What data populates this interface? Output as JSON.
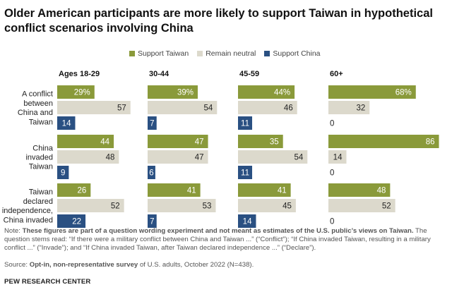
{
  "title": "Older American participants are more likely to support Taiwan in hypothetical conflict scenarios involving China",
  "note": {
    "prefix": "Note: ",
    "bold": "These figures are part of a question wording experiment and not meant as estimates of the U.S. public’s views on Taiwan.",
    "rest": " The question stems read: “If there were a military conflict between China and Taiwan ...” (“Conflict”); “If China invaded Taiwan, resulting in a military conflict ...” (“Invade”); and “If China invaded Taiwan, after Taiwan declared independence ...” (“Declare”)."
  },
  "source": {
    "prefix": "Source: ",
    "bold": "Opt-in, non-representative survey",
    "rest": " of U.S. adults, October 2022 (N=438)."
  },
  "brand": "PEW RESEARCH CENTER",
  "colors": {
    "support_taiwan": "#8a9a3a",
    "remain_neutral": "#dcd9cc",
    "support_china": "#2a5082",
    "label_light": "#ffffff",
    "label_dark": "#222222"
  },
  "chart_data": {
    "type": "bar",
    "orientation": "horizontal",
    "legend_position": "top",
    "grid": false,
    "xlim": [
      0,
      100
    ],
    "series_names": [
      "Support Taiwan",
      "Remain neutral",
      "Support China"
    ],
    "age_groups": [
      "Ages 18-29",
      "30-44",
      "45-59",
      "60+"
    ],
    "scenarios": [
      {
        "label_lines": [
          "A conflict",
          "between",
          "China and",
          "Taiwan"
        ]
      },
      {
        "label_lines": [
          "China",
          "invaded",
          "Taiwan"
        ]
      },
      {
        "label_lines": [
          "Taiwan",
          "declared",
          "independence,",
          "China invaded"
        ]
      }
    ],
    "values": {
      "Ages 18-29": [
        [
          29,
          57,
          14
        ],
        [
          44,
          48,
          9
        ],
        [
          26,
          52,
          22
        ]
      ],
      "30-44": [
        [
          39,
          54,
          7
        ],
        [
          47,
          47,
          6
        ],
        [
          41,
          53,
          7
        ]
      ],
      "45-59": [
        [
          44,
          46,
          11
        ],
        [
          35,
          54,
          11
        ],
        [
          41,
          45,
          14
        ]
      ],
      "60+": [
        [
          68,
          32,
          0
        ],
        [
          86,
          14,
          0
        ],
        [
          48,
          52,
          0
        ]
      ]
    },
    "value_labels": {
      "Ages 18-29": [
        [
          "29%",
          "57",
          "14"
        ],
        [
          "44",
          "48",
          "9"
        ],
        [
          "26",
          "52",
          "22"
        ]
      ],
      "30-44": [
        [
          "39%",
          "54",
          "7"
        ],
        [
          "47",
          "47",
          "6"
        ],
        [
          "41",
          "53",
          "7"
        ]
      ],
      "45-59": [
        [
          "44%",
          "46",
          "11"
        ],
        [
          "35",
          "54",
          "11"
        ],
        [
          "41",
          "45",
          "14"
        ]
      ],
      "60+": [
        [
          "68%",
          "32",
          "0"
        ],
        [
          "86",
          "14",
          "0"
        ],
        [
          "48",
          "52",
          "0"
        ]
      ]
    }
  }
}
